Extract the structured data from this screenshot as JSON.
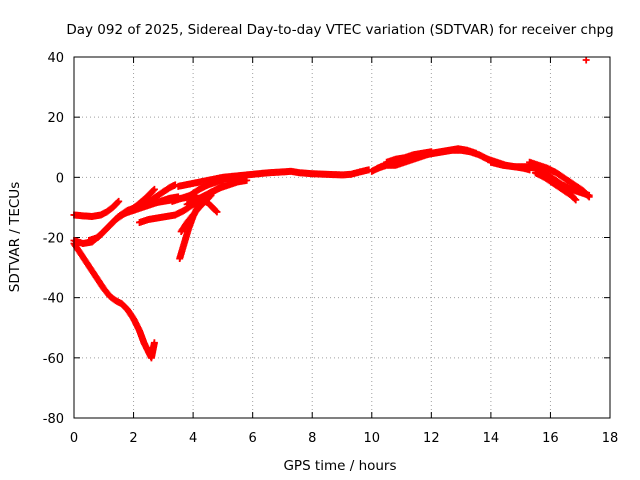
{
  "chart_data": {
    "type": "scatter",
    "title": "Day 092 of 2025, Sidereal Day-to-day VTEC variation (SDTVAR) for receiver chpg",
    "xlabel": "GPS time / hours",
    "ylabel": "SDTVAR / TECUs",
    "xlim": [
      0,
      18
    ],
    "ylim": [
      -80,
      40
    ],
    "xticks": [
      0,
      2,
      4,
      6,
      8,
      10,
      12,
      14,
      16,
      18
    ],
    "yticks": [
      -80,
      -60,
      -40,
      -20,
      0,
      20,
      40
    ],
    "grid": true,
    "marker": "plus",
    "marker_color": "#ff0000",
    "series": [
      {
        "name": "arc-top-left",
        "points": [
          [
            0.0,
            -12.5
          ],
          [
            0.3,
            -12.8
          ],
          [
            0.6,
            -13.0
          ],
          [
            0.9,
            -12.5
          ],
          [
            1.1,
            -11.5
          ],
          [
            1.3,
            -10.0
          ],
          [
            1.5,
            -8.0
          ]
        ]
      },
      {
        "name": "arc-deep-dip",
        "points": [
          [
            0.0,
            -22.0
          ],
          [
            0.2,
            -25.0
          ],
          [
            0.4,
            -28.0
          ],
          [
            0.6,
            -31.0
          ],
          [
            0.8,
            -34.0
          ],
          [
            1.0,
            -37.0
          ],
          [
            1.2,
            -39.5
          ],
          [
            1.4,
            -41.0
          ],
          [
            1.6,
            -42.0
          ],
          [
            1.8,
            -44.0
          ],
          [
            2.0,
            -47.0
          ],
          [
            2.2,
            -51.0
          ],
          [
            2.35,
            -55.0
          ],
          [
            2.5,
            -58.0
          ],
          [
            2.6,
            -60.0
          ],
          [
            2.7,
            -55.0
          ]
        ]
      },
      {
        "name": "arc-rise-a",
        "points": [
          [
            0.0,
            -21.0
          ],
          [
            0.3,
            -22.0
          ],
          [
            0.6,
            -21.5
          ],
          [
            0.9,
            -19.0
          ],
          [
            1.2,
            -16.0
          ],
          [
            1.5,
            -13.0
          ],
          [
            1.8,
            -11.0
          ],
          [
            2.1,
            -10.0
          ],
          [
            2.4,
            -9.5
          ],
          [
            2.7,
            -8.5
          ],
          [
            3.0,
            -8.0
          ],
          [
            3.3,
            -7.5
          ],
          [
            3.6,
            -7.0
          ],
          [
            3.9,
            -6.0
          ],
          [
            4.2,
            -4.0
          ],
          [
            4.5,
            -2.5
          ],
          [
            4.8,
            -1.5
          ],
          [
            5.1,
            -0.5
          ],
          [
            5.4,
            0.0
          ],
          [
            5.7,
            0.5
          ]
        ]
      },
      {
        "name": "arc-rise-b",
        "points": [
          [
            0.5,
            -21.0
          ],
          [
            0.8,
            -20.0
          ],
          [
            1.1,
            -17.0
          ],
          [
            1.4,
            -14.0
          ],
          [
            1.7,
            -12.0
          ],
          [
            2.0,
            -11.0
          ],
          [
            2.3,
            -10.0
          ],
          [
            2.6,
            -9.0
          ],
          [
            2.9,
            -8.0
          ],
          [
            3.2,
            -7.0
          ],
          [
            3.5,
            -6.5
          ]
        ]
      },
      {
        "name": "arc-steep-a",
        "points": [
          [
            1.5,
            -13.0
          ],
          [
            1.8,
            -11.5
          ],
          [
            2.1,
            -9.5
          ],
          [
            2.4,
            -7.0
          ],
          [
            2.7,
            -4.0
          ]
        ]
      },
      {
        "name": "arc-steep-b",
        "points": [
          [
            2.0,
            -11.0
          ],
          [
            2.3,
            -9.0
          ],
          [
            2.6,
            -7.5
          ],
          [
            2.9,
            -5.5
          ],
          [
            3.2,
            -3.5
          ],
          [
            3.4,
            -2.5
          ]
        ]
      },
      {
        "name": "arc-mid-a",
        "points": [
          [
            2.2,
            -15.0
          ],
          [
            2.5,
            -14.0
          ],
          [
            2.8,
            -13.5
          ],
          [
            3.1,
            -13.0
          ],
          [
            3.4,
            -12.5
          ],
          [
            3.7,
            -11.0
          ],
          [
            4.0,
            -9.0
          ],
          [
            4.3,
            -7.0
          ],
          [
            4.6,
            -5.0
          ],
          [
            4.9,
            -3.5
          ],
          [
            5.2,
            -2.5
          ],
          [
            5.5,
            -1.5
          ],
          [
            5.8,
            -1.0
          ]
        ]
      },
      {
        "name": "arc-mid-b",
        "points": [
          [
            3.3,
            -8.0
          ],
          [
            3.6,
            -7.0
          ],
          [
            3.9,
            -6.5
          ],
          [
            4.2,
            -7.0
          ],
          [
            4.5,
            -8.5
          ],
          [
            4.8,
            -11.5
          ]
        ]
      },
      {
        "name": "arc-mid-c",
        "points": [
          [
            3.8,
            -9.0
          ],
          [
            4.1,
            -7.5
          ],
          [
            4.4,
            -6.0
          ],
          [
            4.7,
            -4.5
          ],
          [
            5.0,
            -3.0
          ]
        ]
      },
      {
        "name": "arc-steep-c",
        "points": [
          [
            3.55,
            -27.0
          ],
          [
            3.7,
            -22.0
          ],
          [
            3.85,
            -17.0
          ],
          [
            4.0,
            -13.0
          ],
          [
            4.15,
            -10.0
          ],
          [
            4.3,
            -8.0
          ],
          [
            4.45,
            -6.5
          ]
        ]
      },
      {
        "name": "arc-steep-d",
        "points": [
          [
            3.6,
            -18.0
          ],
          [
            3.8,
            -15.0
          ],
          [
            4.0,
            -12.5
          ],
          [
            4.2,
            -10.0
          ],
          [
            4.4,
            -8.0
          ],
          [
            4.6,
            -6.0
          ]
        ]
      },
      {
        "name": "arc-long",
        "points": [
          [
            3.5,
            -3.0
          ],
          [
            4.0,
            -2.0
          ],
          [
            4.5,
            -1.0
          ],
          [
            5.0,
            0.0
          ],
          [
            5.5,
            0.5
          ],
          [
            6.0,
            1.0
          ],
          [
            6.5,
            1.5
          ],
          [
            7.0,
            1.8
          ],
          [
            7.3,
            2.0
          ],
          [
            7.6,
            1.5
          ],
          [
            8.0,
            1.2
          ],
          [
            8.5,
            1.0
          ],
          [
            9.0,
            0.8
          ],
          [
            9.3,
            1.0
          ],
          [
            9.6,
            1.8
          ],
          [
            9.9,
            2.5
          ]
        ]
      },
      {
        "name": "arc-upper-mid",
        "points": [
          [
            10.0,
            2.0
          ],
          [
            10.3,
            3.5
          ],
          [
            10.6,
            4.5
          ],
          [
            10.9,
            5.5
          ],
          [
            11.2,
            6.5
          ],
          [
            11.5,
            7.0
          ],
          [
            11.8,
            7.5
          ],
          [
            12.1,
            8.0
          ],
          [
            12.4,
            8.5
          ],
          [
            12.7,
            9.0
          ],
          [
            13.0,
            9.0
          ],
          [
            13.3,
            8.5
          ],
          [
            13.6,
            7.5
          ],
          [
            13.9,
            6.0
          ],
          [
            14.2,
            5.0
          ],
          [
            14.5,
            4.0
          ],
          [
            14.8,
            3.5
          ],
          [
            15.1,
            3.0
          ],
          [
            15.3,
            2.5
          ]
        ]
      },
      {
        "name": "arc-upper-low",
        "points": [
          [
            10.2,
            3.0
          ],
          [
            10.5,
            4.0
          ],
          [
            10.8,
            4.0
          ],
          [
            11.1,
            5.0
          ],
          [
            11.4,
            6.0
          ],
          [
            11.7,
            7.0
          ],
          [
            12.0,
            8.0
          ],
          [
            12.3,
            8.5
          ],
          [
            12.6,
            9.0
          ],
          [
            12.9,
            9.5
          ],
          [
            13.2,
            9.0
          ],
          [
            13.5,
            8.0
          ]
        ]
      },
      {
        "name": "arc-upper-alt",
        "points": [
          [
            10.5,
            5.0
          ],
          [
            10.8,
            6.0
          ],
          [
            11.1,
            6.5
          ],
          [
            11.4,
            7.5
          ],
          [
            11.7,
            8.0
          ],
          [
            12.0,
            8.5
          ]
        ]
      },
      {
        "name": "arc-right-a",
        "points": [
          [
            14.0,
            5.0
          ],
          [
            14.4,
            4.0
          ],
          [
            14.8,
            3.5
          ],
          [
            15.2,
            3.5
          ],
          [
            15.5,
            3.0
          ],
          [
            15.8,
            1.5
          ],
          [
            16.1,
            -0.5
          ],
          [
            16.4,
            -2.5
          ],
          [
            16.7,
            -4.0
          ],
          [
            17.0,
            -5.0
          ],
          [
            17.3,
            -6.0
          ]
        ]
      },
      {
        "name": "arc-right-b",
        "points": [
          [
            15.3,
            5.0
          ],
          [
            15.6,
            4.0
          ],
          [
            15.9,
            3.0
          ],
          [
            16.2,
            1.5
          ],
          [
            16.5,
            -0.5
          ],
          [
            16.8,
            -2.5
          ],
          [
            17.1,
            -4.5
          ],
          [
            17.3,
            -6.5
          ]
        ]
      },
      {
        "name": "arc-right-c",
        "points": [
          [
            15.5,
            1.5
          ],
          [
            15.8,
            0.0
          ],
          [
            16.1,
            -2.0
          ],
          [
            16.4,
            -4.0
          ],
          [
            16.7,
            -6.0
          ],
          [
            16.85,
            -7.5
          ]
        ]
      },
      {
        "name": "arc-isolated",
        "points": [
          [
            17.2,
            39.0
          ]
        ]
      }
    ]
  }
}
